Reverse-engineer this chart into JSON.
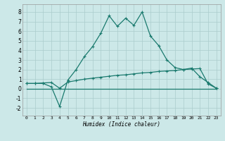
{
  "xlabel": "Humidex (Indice chaleur)",
  "xlim": [
    -0.5,
    23.5
  ],
  "ylim": [
    -2.8,
    8.8
  ],
  "xtick_positions": [
    0,
    1,
    2,
    3,
    4,
    5,
    6,
    7,
    8,
    9,
    10,
    11,
    12,
    13,
    14,
    15,
    16,
    17,
    18,
    19,
    20,
    21,
    22,
    23
  ],
  "xtick_labels": [
    "0",
    "1",
    "2",
    "3",
    "4",
    "5",
    "6",
    "7",
    "8",
    "9",
    "10",
    "11",
    "12",
    "13",
    "14",
    "15",
    "16",
    "17",
    "18",
    "19",
    "20",
    "21",
    "22",
    "23"
  ],
  "ytick_values": [
    -2,
    -1,
    0,
    1,
    2,
    3,
    4,
    5,
    6,
    7,
    8
  ],
  "background_color": "#cce8e8",
  "grid_color": "#aacccc",
  "line_color": "#1a7a6e",
  "line1_x": [
    0,
    1,
    2,
    3,
    4,
    5,
    6,
    7,
    8,
    9,
    10,
    11,
    12,
    13,
    14,
    15,
    16,
    17,
    18,
    19,
    20,
    21,
    22,
    23
  ],
  "line1_y": [
    0.55,
    0.55,
    0.55,
    0.2,
    -1.85,
    0.9,
    2.0,
    3.35,
    4.4,
    5.8,
    7.6,
    6.5,
    7.35,
    6.6,
    8.0,
    5.5,
    4.5,
    3.0,
    2.2,
    2.0,
    2.15,
    1.25,
    0.65,
    0.05
  ],
  "line2_x": [
    0,
    1,
    2,
    3,
    4,
    5,
    6,
    7,
    8,
    9,
    10,
    11,
    12,
    13,
    14,
    15,
    16,
    17,
    18,
    19,
    20,
    21,
    22,
    23
  ],
  "line2_y": [
    0.55,
    0.55,
    0.6,
    0.65,
    0.05,
    0.7,
    0.85,
    1.0,
    1.1,
    1.2,
    1.3,
    1.4,
    1.45,
    1.55,
    1.65,
    1.7,
    1.8,
    1.85,
    1.9,
    2.0,
    2.05,
    2.1,
    0.5,
    0.05
  ],
  "line3_x": [
    0,
    23
  ],
  "line3_y": [
    0.0,
    0.0
  ]
}
